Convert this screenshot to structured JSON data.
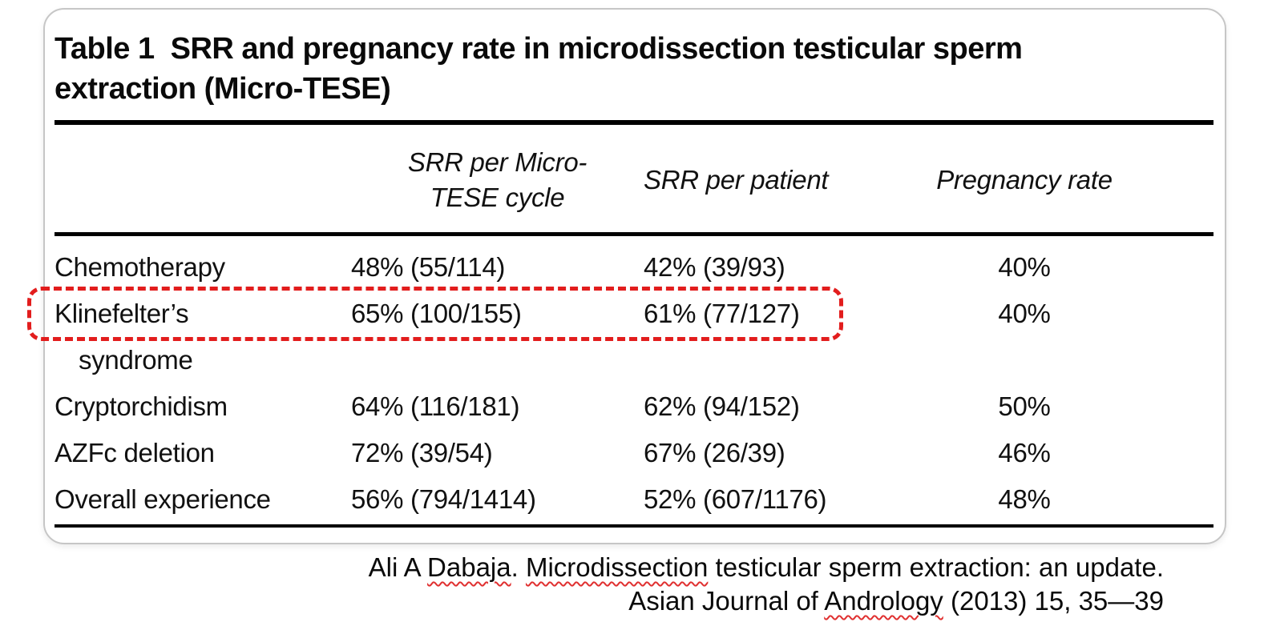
{
  "table": {
    "title_label": "Table 1",
    "title_line1_rest": "SRR and pregnancy rate in microdissection testicular sperm",
    "title_line2": "extraction (Micro-TESE)",
    "headers": {
      "col2_line1": "SRR per Micro-",
      "col2_line2": "TESE cycle",
      "col3": "SRR per patient",
      "col4": "Pregnancy rate"
    },
    "rows": [
      {
        "label": "Chemotherapy",
        "srr_cycle": "48% (55/114)",
        "srr_patient": "42% (39/93)",
        "pregnancy": "40%"
      },
      {
        "label": "Klinefelter’s",
        "label_line2": "syndrome",
        "srr_cycle": "65% (100/155)",
        "srr_patient": "61% (77/127)",
        "pregnancy": "40%",
        "highlighted": true
      },
      {
        "label": "Cryptorchidism",
        "srr_cycle": "64% (116/181)",
        "srr_patient": "62% (94/152)",
        "pregnancy": "50%"
      },
      {
        "label": "AZFc deletion",
        "srr_cycle": "72% (39/54)",
        "srr_patient": "67% (26/39)",
        "pregnancy": "46%"
      },
      {
        "label": "Overall experience",
        "srr_cycle": "56% (794/1414)",
        "srr_patient": "52% (607/1176)",
        "pregnancy": "48%"
      }
    ],
    "highlight_color": "#e21d1d"
  },
  "citation": {
    "line1": {
      "seg1": "Ali A ",
      "seg2": "Dabaja",
      "seg3": ". ",
      "seg4": "Microdissection",
      "seg5": " testicular sperm extraction: an update."
    },
    "line2": {
      "seg1": "Asian Journal of ",
      "seg2": "Andrology",
      "seg3": " (2013) 15, 35—39"
    }
  }
}
